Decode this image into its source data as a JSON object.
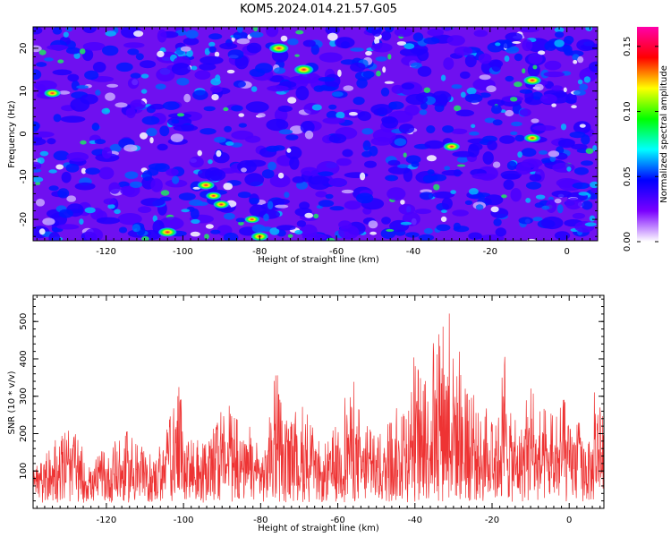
{
  "title": "KOM5.2024.014.21.57.G05",
  "chart_data": [
    {
      "type": "heatmap",
      "xlabel": "Height of straight line (km)",
      "ylabel": "Frequency (Hz)",
      "xlim": [
        -139,
        8
      ],
      "ylim": [
        -25,
        25
      ],
      "x_ticks": [
        -120,
        -100,
        -80,
        -60,
        -40,
        -20,
        0
      ],
      "y_ticks": [
        -20,
        -10,
        0,
        10,
        20
      ],
      "colorbar": {
        "label": "Normalized spectral amplitude",
        "range": [
          0,
          0.165
        ],
        "ticks": [
          "0.00",
          "0.05",
          "0.10",
          "0.15"
        ],
        "colors": [
          "#ffffff",
          "#7a00ff",
          "#0000ff",
          "#00ffff",
          "#00ff00",
          "#ffff00",
          "#ff0000",
          "#ff00aa"
        ]
      },
      "hotspots": [
        {
          "x": -75,
          "y": 20,
          "value": 0.16
        },
        {
          "x": -68.5,
          "y": 15,
          "value": 0.16
        },
        {
          "x": -9,
          "y": 12.5,
          "value": 0.13
        },
        {
          "x": -104,
          "y": -23,
          "value": 0.14
        },
        {
          "x": -94,
          "y": -12,
          "value": 0.12
        },
        {
          "x": -30,
          "y": -3,
          "value": 0.11
        },
        {
          "x": -134,
          "y": 9.5,
          "value": 0.11
        },
        {
          "x": -9,
          "y": -1,
          "value": 0.11
        },
        {
          "x": -90,
          "y": -16.5,
          "value": 0.1
        },
        {
          "x": -80,
          "y": -24,
          "value": 0.12
        },
        {
          "x": -92,
          "y": -14.5,
          "value": 0.09
        },
        {
          "x": -82,
          "y": -20,
          "value": 0.08
        }
      ]
    },
    {
      "type": "line",
      "xlabel": "Height of straight line (km)",
      "ylabel": "SNR (10 * v/v)",
      "xlim": [
        -139,
        9
      ],
      "ylim": [
        0,
        570
      ],
      "x_ticks": [
        -120,
        -100,
        -80,
        -60,
        -40,
        -20,
        0
      ],
      "y_ticks": [
        100,
        200,
        300,
        400,
        500
      ],
      "color": "#ee3333",
      "series": [
        {
          "x": [
            -139,
            -134,
            -129,
            -124,
            -119,
            -114,
            -109,
            -104,
            -100.5,
            -99,
            -94,
            -89,
            -84,
            -79,
            -76,
            -74,
            -69,
            -64,
            -59,
            -57,
            -54,
            -49,
            -45,
            -42,
            -40,
            -38,
            -36,
            -34,
            -33,
            -32,
            -31,
            -30.5,
            -30,
            -28,
            -26,
            -24,
            -22,
            -20,
            -18,
            -17,
            -16,
            -14,
            -12,
            -10,
            -8,
            -6,
            -4,
            -2,
            0,
            2,
            4,
            5,
            6,
            7,
            8,
            9
          ],
          "y": [
            110,
            180,
            220,
            120,
            180,
            210,
            140,
            230,
            400,
            200,
            170,
            300,
            230,
            190,
            390,
            230,
            280,
            160,
            250,
            410,
            240,
            200,
            280,
            270,
            430,
            330,
            460,
            470,
            520,
            570,
            550,
            500,
            570,
            380,
            300,
            350,
            280,
            240,
            350,
            420,
            400,
            240,
            300,
            360,
            260,
            270,
            250,
            300,
            290,
            260,
            240,
            230,
            220,
            420,
            300,
            250
          ]
        }
      ]
    }
  ]
}
